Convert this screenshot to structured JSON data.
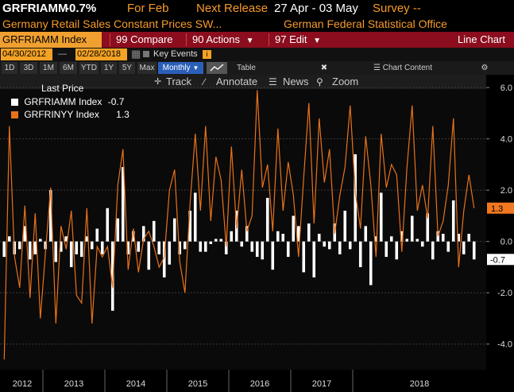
{
  "header": {
    "ticker": "GRFRIAMM",
    "value": "-0.7%",
    "period_label": "For Feb",
    "next_release_label": "Next Release",
    "next_release_value": "27 Apr - 03 May",
    "survey_label": "Survey --"
  },
  "subheader": {
    "description": "Germany Retail Sales Constant Prices SW...",
    "source": "German Federal Statistical Office"
  },
  "toolbar": {
    "ticker_field": "GRFRIAMM Index",
    "compare": "99 Compare",
    "actions": "90 Actions",
    "edit": "97 Edit",
    "view": "Line Chart"
  },
  "daterow": {
    "start": "04/30/2012",
    "end": "02/28/2018",
    "key_events": "Key Events"
  },
  "periodrow": {
    "buttons": [
      "1D",
      "3D",
      "1M",
      "6M",
      "YTD",
      "1Y",
      "5Y",
      "Max"
    ],
    "frequency": "Monthly",
    "table": "Table",
    "chart_content": "Chart Content"
  },
  "tools": {
    "track": "Track",
    "annotate": "Annotate",
    "news": "News",
    "zoom": "Zoom"
  },
  "legend": {
    "title": "Last Price",
    "s1_label": "GRFRIAMM Index",
    "s1_value": "-0.7",
    "s2_label": "GRFRINYY Index",
    "s2_value": "1.3"
  },
  "colors": {
    "mom": "#ffffff",
    "yoy": "#e8721c",
    "tag_yoy": "#f07820",
    "accent_bar": "#8b0d1e"
  },
  "chart_data": {
    "type": "bar",
    "ylim": [
      -5.0,
      6.5
    ],
    "yticks": [
      6.0,
      4.0,
      2.0,
      0.0,
      -2.0,
      -4.0
    ],
    "ytick_labels": [
      "6.0",
      "4.0",
      "2.0",
      "0.0",
      "-2.0",
      "-4.0"
    ],
    "xlabels": [
      "2012",
      "2013",
      "2014",
      "2015",
      "2016",
      "2017",
      "2018"
    ],
    "last_labels": {
      "mom": "-0.7",
      "yoy": "1.3"
    },
    "series": [
      {
        "name": "GRFRIAMM Index",
        "type": "bar",
        "values": [
          -0.6,
          0.2,
          -0.5,
          -0.3,
          0.6,
          -0.7,
          -0.5,
          0.1,
          -0.3,
          2.0,
          -0.8,
          -0.4,
          0.2,
          -1.0,
          -0.5,
          -0.6,
          0.2,
          -0.3,
          0.5,
          -0.5,
          1.3,
          -2.7,
          0.9,
          2.9,
          -0.5,
          0.4,
          -0.4,
          0.6,
          -1.1,
          0.8,
          -0.5,
          -1.4,
          -0.9,
          0.9,
          -0.5,
          -0.3,
          1.2,
          1.9,
          -0.4,
          -0.4,
          -0.1,
          0.1,
          0.1,
          -0.5,
          0.4,
          1.2,
          -0.2,
          0.6,
          -0.4,
          -0.6,
          -0.7,
          1.7,
          -1.1,
          0.4,
          0.3,
          -0.6,
          1.0,
          0.6,
          -1.2,
          0.7,
          -1.4,
          0.3,
          -0.2,
          -0.3,
          0.7,
          -0.5,
          1.2,
          -0.3,
          3.4,
          -1.0,
          0.6,
          -1.7,
          0.2,
          1.9,
          -0.6,
          0.2,
          -0.7,
          0.4,
          0.1,
          1.0,
          0.1,
          -0.2,
          1.1,
          -0.7,
          0.4,
          0.3,
          -0.4,
          1.6,
          0.3,
          -0.5,
          0.3,
          -0.7
        ]
      },
      {
        "name": "GRFRINYY Index",
        "type": "line",
        "values": [
          -4.6,
          4.5,
          -0.6,
          -1.8,
          1.4,
          -2.2,
          1.1,
          -3.0,
          -0.4,
          2.1,
          -3.2,
          0.6,
          -0.3,
          1.2,
          -2.1,
          -2.4,
          1.3,
          -3.2,
          -0.2,
          -0.6,
          -0.2,
          -1.8,
          2.2,
          3.6,
          -1.1,
          0.5,
          -1.2,
          0.1,
          0.4,
          -0.2,
          -1.0,
          -0.6,
          2.0,
          2.8,
          -0.8,
          -2.0,
          1.5,
          4.2,
          1.2,
          4.5,
          0.8,
          3.3,
          2.4,
          -0.2,
          3.7,
          0.5,
          2.8,
          0.4,
          1.0,
          5.9,
          2.1,
          3.0,
          0.4,
          4.4,
          1.2,
          3.1,
          1.8,
          -0.6,
          2.5,
          5.4,
          0.7,
          4.8,
          2.3,
          3.6,
          0.3,
          1.8,
          2.9,
          5.3,
          1.9,
          0.5,
          4.1,
          2.2,
          -0.6,
          4.2,
          2.1,
          3.0,
          2.6,
          -0.4,
          2.9,
          5.3,
          1.2,
          2.2,
          0.9,
          4.5,
          0.2,
          0.8,
          2.2,
          4.8,
          -1.0,
          1.2,
          2.6,
          1.3
        ]
      }
    ]
  }
}
